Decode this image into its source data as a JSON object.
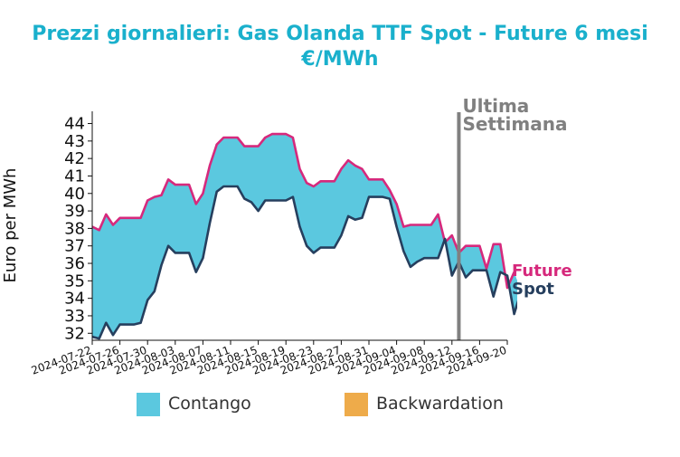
{
  "title_line1": "Prezzi giornalieri: Gas Olanda TTF Spot - Future 6 mesi",
  "title_line2": "€/MWh",
  "colors": {
    "title": "#1ab0cc",
    "future": "#d6297c",
    "spot": "#263f5e",
    "contango": "#5bc8df",
    "backwardation": "#eeab4a",
    "marker": "#808080"
  },
  "legend": [
    {
      "label": "Contango",
      "color": "#5bc8df"
    },
    {
      "label": "Backwardation",
      "color": "#eeab4a"
    }
  ],
  "chart_data": {
    "type": "area",
    "ylabel": "Euro per MWh",
    "xlabel": "",
    "ylim": [
      31.6,
      44.7
    ],
    "yticks": [
      32,
      33,
      34,
      35,
      36,
      37,
      38,
      39,
      40,
      41,
      42,
      43,
      44
    ],
    "xlim": [
      "2024-07-22",
      "2024-09-20"
    ],
    "xticks": [
      "2024-07-22",
      "2024-07-26",
      "2024-07-30",
      "2024-08-03",
      "2024-08-07",
      "2024-08-11",
      "2024-08-15",
      "2024-08-19",
      "2024-08-23",
      "2024-08-27",
      "2024-08-31",
      "2024-09-04",
      "2024-09-08",
      "2024-09-12",
      "2024-09-16",
      "2024-09-20"
    ],
    "grid": false,
    "annotation": {
      "label": "Ultima Settimana",
      "x": "2024-09-13"
    },
    "series": [
      {
        "name": "Future",
        "points": [
          [
            "2024-07-22",
            38.1
          ],
          [
            "2024-07-23",
            37.9
          ],
          [
            "2024-07-24",
            38.8
          ],
          [
            "2024-07-25",
            38.2
          ],
          [
            "2024-07-26",
            38.6
          ],
          [
            "2024-07-27",
            38.6
          ],
          [
            "2024-07-28",
            38.6
          ],
          [
            "2024-07-29",
            38.6
          ],
          [
            "2024-07-30",
            39.6
          ],
          [
            "2024-07-31",
            39.8
          ],
          [
            "2024-08-01",
            39.9
          ],
          [
            "2024-08-02",
            40.8
          ],
          [
            "2024-08-03",
            40.5
          ],
          [
            "2024-08-04",
            40.5
          ],
          [
            "2024-08-05",
            40.5
          ],
          [
            "2024-08-06",
            39.4
          ],
          [
            "2024-08-07",
            40.0
          ],
          [
            "2024-08-08",
            41.6
          ],
          [
            "2024-08-09",
            42.8
          ],
          [
            "2024-08-10",
            43.2
          ],
          [
            "2024-08-11",
            43.2
          ],
          [
            "2024-08-12",
            43.2
          ],
          [
            "2024-08-13",
            42.7
          ],
          [
            "2024-08-14",
            42.7
          ],
          [
            "2024-08-15",
            42.7
          ],
          [
            "2024-08-16",
            43.2
          ],
          [
            "2024-08-17",
            43.4
          ],
          [
            "2024-08-18",
            43.4
          ],
          [
            "2024-08-19",
            43.4
          ],
          [
            "2024-08-20",
            43.2
          ],
          [
            "2024-08-21",
            41.4
          ],
          [
            "2024-08-22",
            40.6
          ],
          [
            "2024-08-23",
            40.4
          ],
          [
            "2024-08-24",
            40.7
          ],
          [
            "2024-08-25",
            40.7
          ],
          [
            "2024-08-26",
            40.7
          ],
          [
            "2024-08-27",
            41.4
          ],
          [
            "2024-08-28",
            41.9
          ],
          [
            "2024-08-29",
            41.6
          ],
          [
            "2024-08-30",
            41.4
          ],
          [
            "2024-08-31",
            40.8
          ],
          [
            "2024-09-01",
            40.8
          ],
          [
            "2024-09-02",
            40.8
          ],
          [
            "2024-09-03",
            40.2
          ],
          [
            "2024-09-04",
            39.4
          ],
          [
            "2024-09-05",
            38.1
          ],
          [
            "2024-09-06",
            38.2
          ],
          [
            "2024-09-07",
            38.2
          ],
          [
            "2024-09-08",
            38.2
          ],
          [
            "2024-09-09",
            38.2
          ],
          [
            "2024-09-10",
            38.8
          ],
          [
            "2024-09-11",
            37.2
          ],
          [
            "2024-09-12",
            37.6
          ],
          [
            "2024-09-13",
            36.6
          ],
          [
            "2024-09-14",
            37.0
          ],
          [
            "2024-09-15",
            37.0
          ],
          [
            "2024-09-16",
            37.0
          ],
          [
            "2024-09-17",
            35.7
          ],
          [
            "2024-09-18",
            37.1
          ],
          [
            "2024-09-19",
            37.1
          ],
          [
            "2024-09-20",
            34.6
          ],
          [
            "2024-09-21",
            35.5
          ]
        ]
      },
      {
        "name": "Spot",
        "points": [
          [
            "2024-07-22",
            31.8
          ],
          [
            "2024-07-23",
            31.7
          ],
          [
            "2024-07-24",
            32.6
          ],
          [
            "2024-07-25",
            31.9
          ],
          [
            "2024-07-26",
            32.5
          ],
          [
            "2024-07-27",
            32.5
          ],
          [
            "2024-07-28",
            32.5
          ],
          [
            "2024-07-29",
            32.6
          ],
          [
            "2024-07-30",
            33.9
          ],
          [
            "2024-07-31",
            34.4
          ],
          [
            "2024-08-01",
            35.9
          ],
          [
            "2024-08-02",
            37.0
          ],
          [
            "2024-08-03",
            36.6
          ],
          [
            "2024-08-04",
            36.6
          ],
          [
            "2024-08-05",
            36.6
          ],
          [
            "2024-08-06",
            35.5
          ],
          [
            "2024-08-07",
            36.3
          ],
          [
            "2024-08-08",
            38.3
          ],
          [
            "2024-08-09",
            40.1
          ],
          [
            "2024-08-10",
            40.4
          ],
          [
            "2024-08-11",
            40.4
          ],
          [
            "2024-08-12",
            40.4
          ],
          [
            "2024-08-13",
            39.7
          ],
          [
            "2024-08-14",
            39.5
          ],
          [
            "2024-08-15",
            39.0
          ],
          [
            "2024-08-16",
            39.6
          ],
          [
            "2024-08-17",
            39.6
          ],
          [
            "2024-08-18",
            39.6
          ],
          [
            "2024-08-19",
            39.6
          ],
          [
            "2024-08-20",
            39.8
          ],
          [
            "2024-08-21",
            38.1
          ],
          [
            "2024-08-22",
            37.0
          ],
          [
            "2024-08-23",
            36.6
          ],
          [
            "2024-08-24",
            36.9
          ],
          [
            "2024-08-25",
            36.9
          ],
          [
            "2024-08-26",
            36.9
          ],
          [
            "2024-08-27",
            37.6
          ],
          [
            "2024-08-28",
            38.7
          ],
          [
            "2024-08-29",
            38.5
          ],
          [
            "2024-08-30",
            38.6
          ],
          [
            "2024-08-31",
            39.8
          ],
          [
            "2024-09-01",
            39.8
          ],
          [
            "2024-09-02",
            39.8
          ],
          [
            "2024-09-03",
            39.7
          ],
          [
            "2024-09-04",
            38.1
          ],
          [
            "2024-09-05",
            36.7
          ],
          [
            "2024-09-06",
            35.8
          ],
          [
            "2024-09-07",
            36.1
          ],
          [
            "2024-09-08",
            36.3
          ],
          [
            "2024-09-09",
            36.3
          ],
          [
            "2024-09-10",
            36.3
          ],
          [
            "2024-09-11",
            37.4
          ],
          [
            "2024-09-12",
            35.3
          ],
          [
            "2024-09-13",
            36.1
          ],
          [
            "2024-09-14",
            35.2
          ],
          [
            "2024-09-15",
            35.6
          ],
          [
            "2024-09-16",
            35.6
          ],
          [
            "2024-09-17",
            35.6
          ],
          [
            "2024-09-18",
            34.1
          ],
          [
            "2024-09-19",
            35.5
          ],
          [
            "2024-09-20",
            35.3
          ],
          [
            "2024-09-21",
            33.1
          ],
          [
            "2024-09-22",
            34.4
          ]
        ]
      }
    ]
  }
}
